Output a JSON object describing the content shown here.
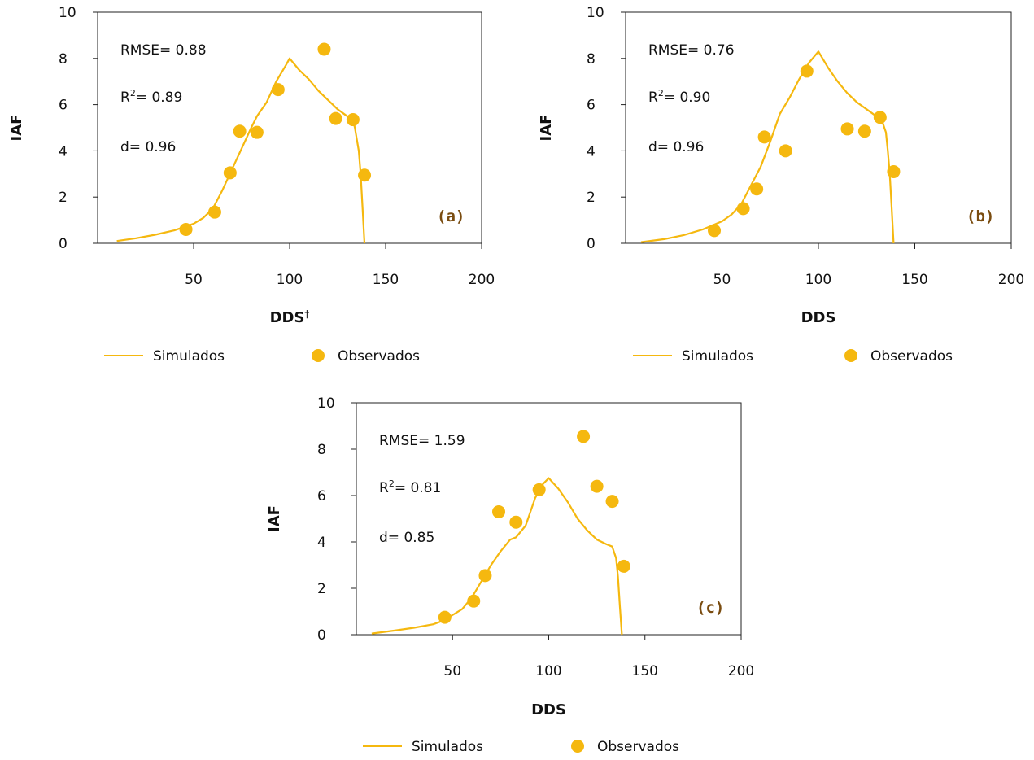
{
  "legend": {
    "simulated_label": "Simulados",
    "observed_label": "Observados"
  },
  "colors": {
    "series": "#f5b80f",
    "panel_label": "#7a4c10",
    "axis": "#222222"
  },
  "chart_data": [
    {
      "type": "scatter",
      "panel_label": "(a)",
      "xlabel": "DDS",
      "xlabel_mark": "†",
      "ylabel": "IAF",
      "xlim": [
        0,
        200
      ],
      "ylim": [
        0,
        10
      ],
      "xticks": [
        50,
        100,
        150,
        200
      ],
      "yticks": [
        0,
        2,
        4,
        6,
        8,
        10
      ],
      "grid": false,
      "legend_position": "bottom",
      "stats": {
        "rmse": "RMSE= 0.88",
        "r2_prefix": "R",
        "r2_sup": "2",
        "r2_value": "= 0.89",
        "d": "d= 0.96"
      },
      "series": [
        {
          "name": "Simulados",
          "kind": "line",
          "x": [
            10,
            20,
            30,
            40,
            50,
            55,
            60,
            65,
            70,
            75,
            80,
            83,
            88,
            93,
            98,
            100,
            105,
            110,
            115,
            120,
            125,
            130,
            133,
            134,
            135,
            136,
            137,
            138,
            139
          ],
          "y": [
            0.1,
            0.22,
            0.37,
            0.56,
            0.85,
            1.1,
            1.5,
            2.3,
            3.2,
            4.1,
            5.0,
            5.5,
            6.1,
            7.0,
            7.7,
            8.0,
            7.5,
            7.1,
            6.6,
            6.2,
            5.8,
            5.5,
            5.3,
            5.0,
            4.5,
            4.0,
            3.0,
            1.5,
            0
          ]
        },
        {
          "name": "Observados",
          "kind": "scatter",
          "x": [
            46,
            61,
            69,
            74,
            83,
            94,
            118,
            124,
            133,
            139
          ],
          "y": [
            0.6,
            1.35,
            3.05,
            4.85,
            4.8,
            6.65,
            8.4,
            5.4,
            5.35,
            2.95
          ]
        }
      ]
    },
    {
      "type": "scatter",
      "panel_label": "(b)",
      "xlabel": "DDS",
      "xlabel_mark": "",
      "ylabel": "IAF",
      "xlim": [
        0,
        200
      ],
      "ylim": [
        0,
        10
      ],
      "xticks": [
        50,
        100,
        150,
        200
      ],
      "yticks": [
        0,
        2,
        4,
        6,
        8,
        10
      ],
      "grid": false,
      "legend_position": "bottom",
      "stats": {
        "rmse": "RMSE= 0.76",
        "r2_prefix": "R",
        "r2_sup": "2",
        "r2_value": "= 0.90",
        "d": "d= 0.96"
      },
      "series": [
        {
          "name": "Simulados",
          "kind": "line",
          "x": [
            8,
            20,
            30,
            40,
            50,
            55,
            60,
            65,
            70,
            75,
            80,
            85,
            90,
            95,
            100,
            105,
            110,
            115,
            120,
            125,
            130,
            133,
            135,
            136,
            137,
            138,
            139
          ],
          "y": [
            0.05,
            0.18,
            0.35,
            0.6,
            0.95,
            1.25,
            1.7,
            2.5,
            3.3,
            4.4,
            5.6,
            6.3,
            7.1,
            7.8,
            8.3,
            7.6,
            7.0,
            6.5,
            6.1,
            5.8,
            5.5,
            5.3,
            4.8,
            4.0,
            3.0,
            1.5,
            0
          ]
        },
        {
          "name": "Observados",
          "kind": "scatter",
          "x": [
            46,
            61,
            68,
            72,
            83,
            94,
            115,
            124,
            132,
            139
          ],
          "y": [
            0.55,
            1.5,
            2.35,
            4.6,
            4.0,
            7.45,
            4.95,
            4.85,
            5.45,
            3.1
          ]
        }
      ]
    },
    {
      "type": "scatter",
      "panel_label": "(c)",
      "xlabel": "DDS",
      "xlabel_mark": "",
      "ylabel": "IAF",
      "xlim": [
        0,
        200
      ],
      "ylim": [
        0,
        10
      ],
      "xticks": [
        50,
        100,
        150,
        200
      ],
      "yticks": [
        0,
        2,
        4,
        6,
        8,
        10
      ],
      "grid": false,
      "legend_position": "bottom",
      "stats": {
        "rmse": "RMSE= 1.59",
        "r2_prefix": "R",
        "r2_sup": "2",
        "r2_value": "= 0.81",
        "d": "d= 0.85"
      },
      "series": [
        {
          "name": "Simulados",
          "kind": "line",
          "x": [
            8,
            20,
            30,
            40,
            45,
            50,
            55,
            60,
            65,
            70,
            75,
            80,
            83,
            88,
            93,
            97,
            100,
            105,
            110,
            115,
            120,
            125,
            130,
            133,
            135,
            136,
            137,
            138
          ],
          "y": [
            0.05,
            0.18,
            0.3,
            0.45,
            0.6,
            0.85,
            1.1,
            1.6,
            2.3,
            3.0,
            3.6,
            4.1,
            4.2,
            4.7,
            5.9,
            6.5,
            6.75,
            6.3,
            5.7,
            5.0,
            4.5,
            4.1,
            3.9,
            3.8,
            3.3,
            2.5,
            1.2,
            0
          ]
        },
        {
          "name": "Observados",
          "kind": "scatter",
          "x": [
            46,
            61,
            67,
            74,
            83,
            95,
            118,
            125,
            133,
            139
          ],
          "y": [
            0.75,
            1.45,
            2.55,
            5.3,
            4.85,
            6.25,
            8.55,
            6.4,
            5.75,
            2.95
          ]
        }
      ]
    }
  ]
}
